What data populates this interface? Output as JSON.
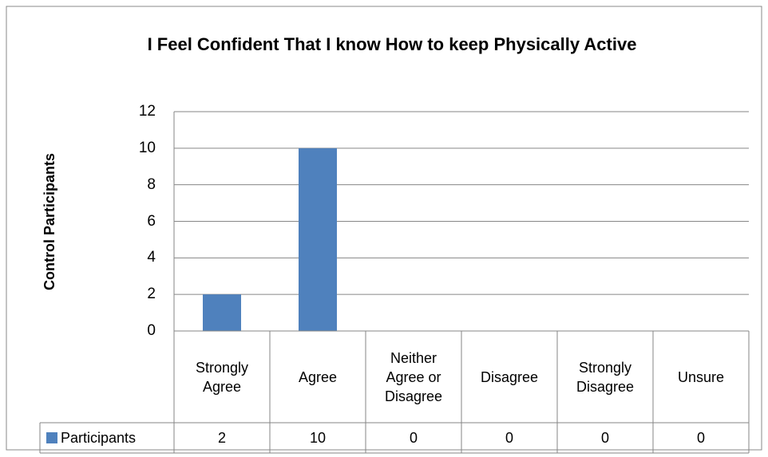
{
  "chart_data": {
    "type": "bar",
    "title": "I Feel Confident That I know How to keep Physically Active",
    "y_label": "Control Participants",
    "categories": [
      "Strongly Agree",
      "Agree",
      "Neither Agree or Disagree",
      "Disagree",
      "Strongly Disagree",
      "Unsure"
    ],
    "series": [
      {
        "name": "Participants",
        "color": "#4f81bd",
        "values": [
          2,
          10,
          0,
          0,
          0,
          0
        ]
      }
    ],
    "ylim": [
      0,
      12
    ],
    "yticks": [
      0,
      2,
      4,
      6,
      8,
      10,
      12
    ],
    "grid": true,
    "data_table": true
  }
}
